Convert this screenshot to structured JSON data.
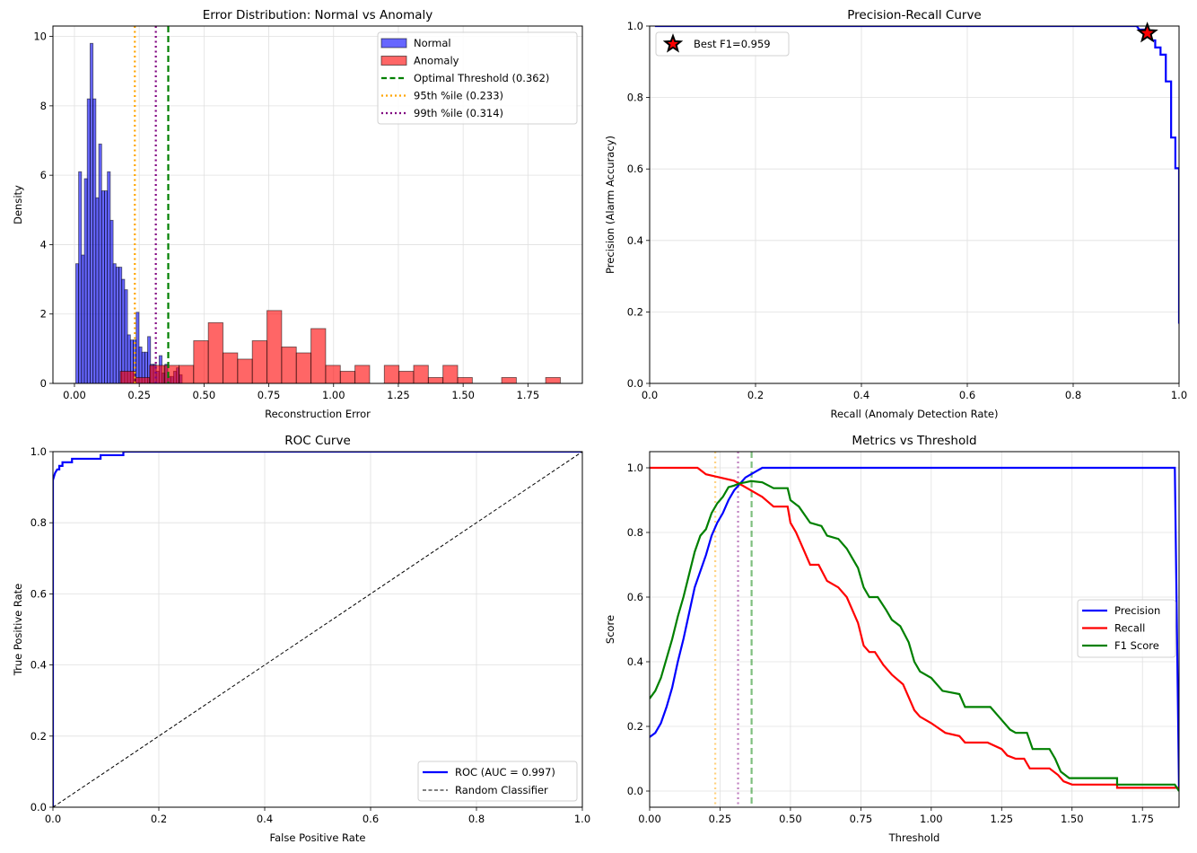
{
  "chart_data": [
    {
      "id": "error_distribution",
      "type": "bar",
      "title": "Error Distribution: Normal vs Anomaly",
      "xlabel": "Reconstruction Error",
      "ylabel": "Density",
      "xlim": [
        -0.083,
        1.96
      ],
      "ylim": [
        0,
        10.3
      ],
      "xticks": [
        0.0,
        0.25,
        0.5,
        0.75,
        1.0,
        1.25,
        1.5,
        1.75
      ],
      "xtick_labels": [
        "0.00",
        "0.25",
        "0.50",
        "0.75",
        "1.00",
        "1.25",
        "1.50",
        "1.75"
      ],
      "yticks": [
        0,
        2,
        4,
        6,
        8,
        10
      ],
      "ytick_labels": [
        "0",
        "2",
        "4",
        "6",
        "8",
        "10"
      ],
      "grid": true,
      "legend_position": "top-right",
      "series": [
        {
          "name": "Normal",
          "color": "#0000ff",
          "alpha": 0.6,
          "bin_start": 0.005,
          "bin_width": 0.0111,
          "values": [
            3.45,
            6.1,
            3.7,
            5.9,
            8.2,
            9.8,
            8.2,
            5.35,
            6.9,
            5.55,
            5.55,
            6.1,
            4.7,
            3.45,
            3.35,
            3.35,
            3.0,
            2.7,
            1.4,
            1.25,
            1.25,
            2.05,
            1.05,
            0.9,
            0.9,
            1.35,
            0.55,
            0.55,
            0.35,
            0.8,
            0.3,
            0.55,
            0.2,
            0.2,
            0.35,
            0.45,
            0.25
          ]
        },
        {
          "name": "Anomaly",
          "color": "#ff0000",
          "alpha": 0.6,
          "bin_start": 0.177,
          "bin_width": 0.0566,
          "values": [
            0.35,
            0.17,
            0.52,
            0.52,
            0.52,
            1.23,
            1.75,
            0.88,
            0.7,
            1.23,
            2.1,
            1.05,
            0.88,
            1.58,
            0.52,
            0.35,
            0.52,
            0.0,
            0.52,
            0.35,
            0.52,
            0.17,
            0.52,
            0.17,
            0.0,
            0.0,
            0.17,
            0.0,
            0.0,
            0.17
          ]
        }
      ],
      "vlines": [
        {
          "name": "Optimal Threshold (0.362)",
          "x": 0.362,
          "color": "#008000",
          "style": "dashed"
        },
        {
          "name": "95th %ile (0.233)",
          "x": 0.233,
          "color": "#ffa500",
          "style": "dotted"
        },
        {
          "name": "99th %ile (0.314)",
          "x": 0.314,
          "color": "#800080",
          "style": "dotted"
        }
      ],
      "legend": [
        "Normal",
        "Anomaly",
        "Optimal Threshold (0.362)",
        "95th %ile (0.233)",
        "99th %ile (0.314)"
      ]
    },
    {
      "id": "precision_recall",
      "type": "line",
      "title": "Precision-Recall Curve",
      "xlabel": "Recall (Anomaly Detection Rate)",
      "ylabel": "Precision (Alarm Accuracy)",
      "xlim": [
        0,
        1
      ],
      "ylim": [
        0,
        1
      ],
      "xticks": [
        0.0,
        0.2,
        0.4,
        0.6,
        0.8,
        1.0
      ],
      "xtick_labels": [
        "0.0",
        "0.2",
        "0.4",
        "0.6",
        "0.8",
        "1.0"
      ],
      "yticks": [
        0.0,
        0.2,
        0.4,
        0.6,
        0.8,
        1.0
      ],
      "ytick_labels": [
        "0.0",
        "0.2",
        "0.4",
        "0.6",
        "0.8",
        "1.0"
      ],
      "grid": true,
      "legend_position": "top-left",
      "series": [
        {
          "name": "PR",
          "color": "#0000ff",
          "step": true,
          "points": [
            [
              0.01,
              1.0
            ],
            [
              0.92,
              1.0
            ],
            [
              0.925,
              0.99
            ],
            [
              0.935,
              0.99
            ],
            [
              0.94,
              0.98
            ],
            [
              0.945,
              0.97
            ],
            [
              0.95,
              0.96
            ],
            [
              0.955,
              0.96
            ],
            [
              0.955,
              0.94
            ],
            [
              0.965,
              0.94
            ],
            [
              0.965,
              0.92
            ],
            [
              0.975,
              0.92
            ],
            [
              0.975,
              0.845
            ],
            [
              0.985,
              0.845
            ],
            [
              0.985,
              0.688
            ],
            [
              0.993,
              0.688
            ],
            [
              0.993,
              0.602
            ],
            [
              1.0,
              0.602
            ],
            [
              1.0,
              0.167
            ]
          ]
        }
      ],
      "markers": [
        {
          "name": "Best F1=0.959",
          "x": 0.94,
          "y": 0.98,
          "shape": "star",
          "fill": "#ff0000",
          "edge": "#000000"
        }
      ],
      "legend": [
        "Best F1=0.959"
      ]
    },
    {
      "id": "roc",
      "type": "line",
      "title": "ROC Curve",
      "xlabel": "False Positive Rate",
      "ylabel": "True Positive Rate",
      "xlim": [
        0,
        1
      ],
      "ylim": [
        0,
        1
      ],
      "xticks": [
        0.0,
        0.2,
        0.4,
        0.6,
        0.8,
        1.0
      ],
      "xtick_labels": [
        "0.0",
        "0.2",
        "0.4",
        "0.6",
        "0.8",
        "1.0"
      ],
      "yticks": [
        0.0,
        0.2,
        0.4,
        0.6,
        0.8,
        1.0
      ],
      "ytick_labels": [
        "0.0",
        "0.2",
        "0.4",
        "0.6",
        "0.8",
        "1.0"
      ],
      "grid": true,
      "legend_position": "bottom-right",
      "series": [
        {
          "name": "ROC (AUC = 0.997)",
          "color": "#0000ff",
          "style": "solid",
          "points": [
            [
              0,
              0
            ],
            [
              0,
              0.92
            ],
            [
              0.002,
              0.93
            ],
            [
              0.004,
              0.94
            ],
            [
              0.008,
              0.95
            ],
            [
              0.012,
              0.95
            ],
            [
              0.012,
              0.96
            ],
            [
              0.018,
              0.96
            ],
            [
              0.018,
              0.97
            ],
            [
              0.036,
              0.97
            ],
            [
              0.036,
              0.98
            ],
            [
              0.09,
              0.98
            ],
            [
              0.09,
              0.99
            ],
            [
              0.133,
              0.99
            ],
            [
              0.133,
              1.0
            ],
            [
              1.0,
              1.0
            ]
          ]
        },
        {
          "name": "Random Classifier",
          "color": "#000000",
          "style": "dashed",
          "points": [
            [
              0,
              0
            ],
            [
              1,
              1
            ]
          ]
        }
      ],
      "legend": [
        "ROC (AUC = 0.997)",
        "Random Classifier"
      ]
    },
    {
      "id": "metrics_vs_threshold",
      "type": "line",
      "title": "Metrics vs Threshold",
      "xlabel": "Threshold",
      "ylabel": "Score",
      "xlim": [
        0,
        1.88
      ],
      "ylim": [
        -0.05,
        1.05
      ],
      "xticks": [
        0.0,
        0.25,
        0.5,
        0.75,
        1.0,
        1.25,
        1.5,
        1.75
      ],
      "xtick_labels": [
        "0.00",
        "0.25",
        "0.50",
        "0.75",
        "1.00",
        "1.25",
        "1.50",
        "1.75"
      ],
      "yticks": [
        0.0,
        0.2,
        0.4,
        0.6,
        0.8,
        1.0
      ],
      "ytick_labels": [
        "0.0",
        "0.2",
        "0.4",
        "0.6",
        "0.8",
        "1.0"
      ],
      "grid": true,
      "legend_position": "center-right",
      "series": [
        {
          "name": "Precision",
          "color": "#0000ff",
          "points": [
            [
              0,
              0.167
            ],
            [
              0.02,
              0.18
            ],
            [
              0.04,
              0.21
            ],
            [
              0.06,
              0.26
            ],
            [
              0.08,
              0.32
            ],
            [
              0.1,
              0.4
            ],
            [
              0.12,
              0.47
            ],
            [
              0.14,
              0.55
            ],
            [
              0.16,
              0.63
            ],
            [
              0.18,
              0.68
            ],
            [
              0.2,
              0.73
            ],
            [
              0.22,
              0.79
            ],
            [
              0.24,
              0.83
            ],
            [
              0.26,
              0.86
            ],
            [
              0.28,
              0.9
            ],
            [
              0.3,
              0.93
            ],
            [
              0.32,
              0.95
            ],
            [
              0.34,
              0.97
            ],
            [
              0.36,
              0.98
            ],
            [
              0.38,
              0.99
            ],
            [
              0.4,
              1.0
            ],
            [
              1.865,
              1.0
            ],
            [
              1.88,
              0.0
            ]
          ]
        },
        {
          "name": "Recall",
          "color": "#ff0000",
          "points": [
            [
              0,
              1.0
            ],
            [
              0.17,
              1.0
            ],
            [
              0.2,
              0.98
            ],
            [
              0.25,
              0.97
            ],
            [
              0.3,
              0.96
            ],
            [
              0.32,
              0.95
            ],
            [
              0.36,
              0.93
            ],
            [
              0.4,
              0.91
            ],
            [
              0.44,
              0.88
            ],
            [
              0.49,
              0.88
            ],
            [
              0.5,
              0.83
            ],
            [
              0.52,
              0.8
            ],
            [
              0.55,
              0.74
            ],
            [
              0.57,
              0.7
            ],
            [
              0.6,
              0.7
            ],
            [
              0.63,
              0.65
            ],
            [
              0.67,
              0.63
            ],
            [
              0.7,
              0.6
            ],
            [
              0.72,
              0.56
            ],
            [
              0.74,
              0.52
            ],
            [
              0.76,
              0.45
            ],
            [
              0.78,
              0.43
            ],
            [
              0.8,
              0.43
            ],
            [
              0.83,
              0.39
            ],
            [
              0.86,
              0.36
            ],
            [
              0.9,
              0.33
            ],
            [
              0.92,
              0.29
            ],
            [
              0.94,
              0.25
            ],
            [
              0.96,
              0.23
            ],
            [
              1.0,
              0.21
            ],
            [
              1.05,
              0.18
            ],
            [
              1.1,
              0.17
            ],
            [
              1.12,
              0.15
            ],
            [
              1.2,
              0.15
            ],
            [
              1.25,
              0.13
            ],
            [
              1.27,
              0.11
            ],
            [
              1.3,
              0.1
            ],
            [
              1.33,
              0.1
            ],
            [
              1.35,
              0.07
            ],
            [
              1.42,
              0.07
            ],
            [
              1.45,
              0.05
            ],
            [
              1.47,
              0.03
            ],
            [
              1.5,
              0.02
            ],
            [
              1.66,
              0.02
            ],
            [
              1.66,
              0.01
            ],
            [
              1.88,
              0.01
            ]
          ]
        },
        {
          "name": "F1 Score",
          "color": "#008000",
          "points": [
            [
              0,
              0.286
            ],
            [
              0.02,
              0.31
            ],
            [
              0.04,
              0.35
            ],
            [
              0.06,
              0.41
            ],
            [
              0.08,
              0.47
            ],
            [
              0.1,
              0.54
            ],
            [
              0.12,
              0.6
            ],
            [
              0.14,
              0.67
            ],
            [
              0.16,
              0.74
            ],
            [
              0.18,
              0.79
            ],
            [
              0.2,
              0.81
            ],
            [
              0.22,
              0.86
            ],
            [
              0.24,
              0.89
            ],
            [
              0.26,
              0.91
            ],
            [
              0.28,
              0.94
            ],
            [
              0.3,
              0.945
            ],
            [
              0.32,
              0.952
            ],
            [
              0.34,
              0.955
            ],
            [
              0.36,
              0.959
            ],
            [
              0.4,
              0.955
            ],
            [
              0.44,
              0.937
            ],
            [
              0.49,
              0.937
            ],
            [
              0.5,
              0.9
            ],
            [
              0.53,
              0.88
            ],
            [
              0.57,
              0.83
            ],
            [
              0.61,
              0.82
            ],
            [
              0.63,
              0.79
            ],
            [
              0.67,
              0.78
            ],
            [
              0.7,
              0.75
            ],
            [
              0.72,
              0.72
            ],
            [
              0.74,
              0.69
            ],
            [
              0.76,
              0.63
            ],
            [
              0.78,
              0.6
            ],
            [
              0.81,
              0.6
            ],
            [
              0.84,
              0.56
            ],
            [
              0.86,
              0.53
            ],
            [
              0.89,
              0.51
            ],
            [
              0.92,
              0.46
            ],
            [
              0.94,
              0.4
            ],
            [
              0.96,
              0.37
            ],
            [
              1.0,
              0.35
            ],
            [
              1.04,
              0.31
            ],
            [
              1.1,
              0.3
            ],
            [
              1.12,
              0.26
            ],
            [
              1.21,
              0.26
            ],
            [
              1.24,
              0.23
            ],
            [
              1.28,
              0.19
            ],
            [
              1.3,
              0.18
            ],
            [
              1.34,
              0.18
            ],
            [
              1.36,
              0.13
            ],
            [
              1.42,
              0.13
            ],
            [
              1.44,
              0.1
            ],
            [
              1.46,
              0.06
            ],
            [
              1.49,
              0.04
            ],
            [
              1.66,
              0.04
            ],
            [
              1.66,
              0.02
            ],
            [
              1.865,
              0.02
            ],
            [
              1.88,
              0.0
            ]
          ]
        }
      ],
      "vlines": [
        {
          "name": "95th %ile",
          "x": 0.233,
          "color": "#ffa500",
          "style": "dotted",
          "alpha": 0.5
        },
        {
          "name": "99th %ile",
          "x": 0.314,
          "color": "#800080",
          "style": "dotted",
          "alpha": 0.5
        },
        {
          "name": "Optimal Threshold",
          "x": 0.362,
          "color": "#008000",
          "style": "dashed",
          "alpha": 0.5
        }
      ],
      "legend": [
        "Precision",
        "Recall",
        "F1 Score"
      ]
    }
  ]
}
